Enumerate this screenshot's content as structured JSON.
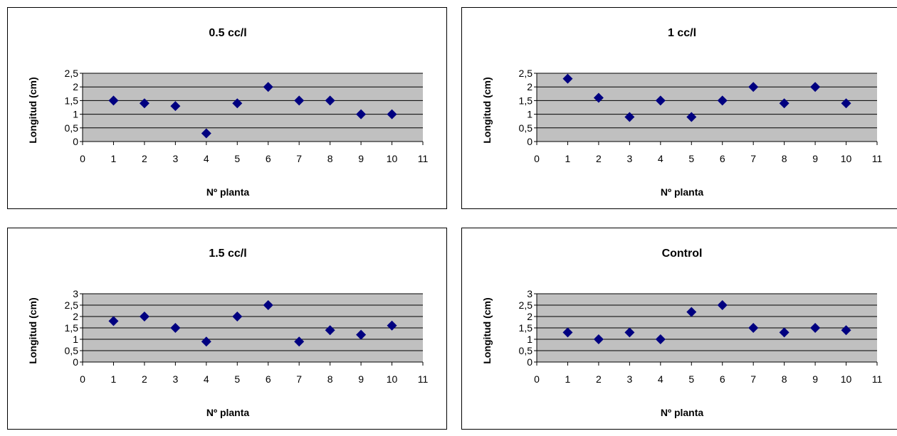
{
  "chart_data": [
    {
      "type": "scatter",
      "title": "0.5 cc/l",
      "xlabel": "Nº planta",
      "ylabel": "Longitud (cm)",
      "xlim": [
        0,
        11
      ],
      "ylim": [
        0,
        2.5
      ],
      "x_ticks": [
        "0",
        "1",
        "2",
        "3",
        "4",
        "5",
        "6",
        "7",
        "8",
        "9",
        "10",
        "11"
      ],
      "y_ticks": [
        "0",
        "0,5",
        "1",
        "1,5",
        "2",
        "2,5"
      ],
      "y_tick_values": [
        0,
        0.5,
        1,
        1.5,
        2,
        2.5
      ],
      "grid": true,
      "series": [
        {
          "x": [
            1,
            2,
            3,
            4,
            5,
            6,
            7,
            8,
            9,
            10
          ],
          "y": [
            1.5,
            1.4,
            1.3,
            0.3,
            1.4,
            2.0,
            1.5,
            1.5,
            1.0,
            1.0
          ]
        }
      ]
    },
    {
      "type": "scatter",
      "title": "1 cc/l",
      "xlabel": "Nº planta",
      "ylabel": "Longitud (cm)",
      "xlim": [
        0,
        11
      ],
      "ylim": [
        0,
        2.5
      ],
      "x_ticks": [
        "0",
        "1",
        "2",
        "3",
        "4",
        "5",
        "6",
        "7",
        "8",
        "9",
        "10",
        "11"
      ],
      "y_ticks": [
        "0",
        "0,5",
        "1",
        "1,5",
        "2",
        "2,5"
      ],
      "y_tick_values": [
        0,
        0.5,
        1,
        1.5,
        2,
        2.5
      ],
      "grid": true,
      "series": [
        {
          "x": [
            1,
            2,
            3,
            4,
            5,
            6,
            7,
            8,
            9,
            10
          ],
          "y": [
            2.3,
            1.6,
            0.9,
            1.5,
            0.9,
            1.5,
            2.0,
            1.4,
            2.0,
            1.4
          ]
        }
      ]
    },
    {
      "type": "scatter",
      "title": "1.5 cc/l",
      "xlabel": "Nº planta",
      "ylabel": "Longitud (cm)",
      "xlim": [
        0,
        11
      ],
      "ylim": [
        0,
        3
      ],
      "x_ticks": [
        "0",
        "1",
        "2",
        "3",
        "4",
        "5",
        "6",
        "7",
        "8",
        "9",
        "10",
        "11"
      ],
      "y_ticks": [
        "0",
        "0,5",
        "1",
        "1,5",
        "2",
        "2,5",
        "3"
      ],
      "y_tick_values": [
        0,
        0.5,
        1,
        1.5,
        2,
        2.5,
        3
      ],
      "grid": true,
      "series": [
        {
          "x": [
            1,
            2,
            3,
            4,
            5,
            6,
            7,
            8,
            9,
            10
          ],
          "y": [
            1.8,
            2.0,
            1.5,
            0.9,
            2.0,
            2.5,
            0.9,
            1.4,
            1.2,
            1.6
          ]
        }
      ]
    },
    {
      "type": "scatter",
      "title": "Control",
      "xlabel": "Nº planta",
      "ylabel": "Longitud (cm)",
      "xlim": [
        0,
        11
      ],
      "ylim": [
        0,
        3
      ],
      "x_ticks": [
        "0",
        "1",
        "2",
        "3",
        "4",
        "5",
        "6",
        "7",
        "8",
        "9",
        "10",
        "11"
      ],
      "y_ticks": [
        "0",
        "0,5",
        "1",
        "1,5",
        "2",
        "2,5",
        "3"
      ],
      "y_tick_values": [
        0,
        0.5,
        1,
        1.5,
        2,
        2.5,
        3
      ],
      "grid": true,
      "series": [
        {
          "x": [
            1,
            2,
            3,
            4,
            5,
            6,
            7,
            8,
            9,
            10
          ],
          "y": [
            1.3,
            1.0,
            1.3,
            1.0,
            2.2,
            2.5,
            1.5,
            1.3,
            1.5,
            1.4
          ]
        }
      ]
    }
  ],
  "colors": {
    "marker": "#000080",
    "plot_area": "#c0c0c0",
    "gridline": "#000000"
  }
}
